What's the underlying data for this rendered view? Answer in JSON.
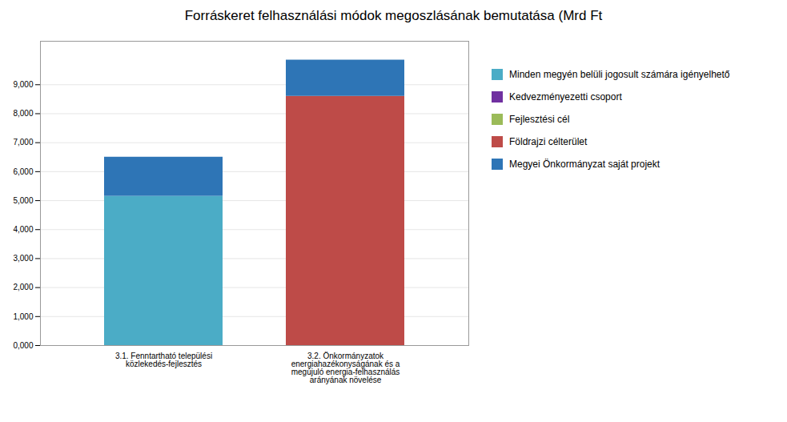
{
  "chart_data": {
    "type": "bar",
    "title": "Forráskeret felhasználási módok megoszlásának bemutatása (Mrd Ft",
    "categories": [
      "3.1. Fenntartható települési\nközlekedés-fejlesztés",
      "3.2. Önkormányzatok\nenergiahazékonyságának és a\nmegújuló energia-felhasználás\narányának növelése"
    ],
    "series": [
      {
        "name": "Minden megyén belüli jogosult számára igényelhető",
        "color": "#4BACC6",
        "values": [
          5150,
          null
        ]
      },
      {
        "name": "Kedvezményezetti csoport",
        "color": "#7030A0",
        "values": [
          null,
          null
        ]
      },
      {
        "name": "Fejlesztési cél",
        "color": "#9BBB59",
        "values": [
          null,
          null
        ]
      },
      {
        "name": "Földrajzi célterület",
        "color": "#BE4B48",
        "values": [
          null,
          8600
        ]
      },
      {
        "name": "Megyei Önkormányzat saját projekt",
        "color": "#2E75B6",
        "values": [
          1350,
          1250
        ]
      }
    ],
    "stacked": true,
    "ylim": [
      0,
      10500
    ],
    "yticks": [
      {
        "value": 0,
        "label": "0,000"
      },
      {
        "value": 1000,
        "label": "1,000"
      },
      {
        "value": 2000,
        "label": "2,000"
      },
      {
        "value": 3000,
        "label": "3,000"
      },
      {
        "value": 4000,
        "label": "4,000"
      },
      {
        "value": 5000,
        "label": "5,000"
      },
      {
        "value": 6000,
        "label": "6,000"
      },
      {
        "value": 7000,
        "label": "7,000"
      },
      {
        "value": 8000,
        "label": "8,000"
      },
      {
        "value": 9000,
        "label": "9,000"
      }
    ],
    "grid": true,
    "legend": "right"
  }
}
